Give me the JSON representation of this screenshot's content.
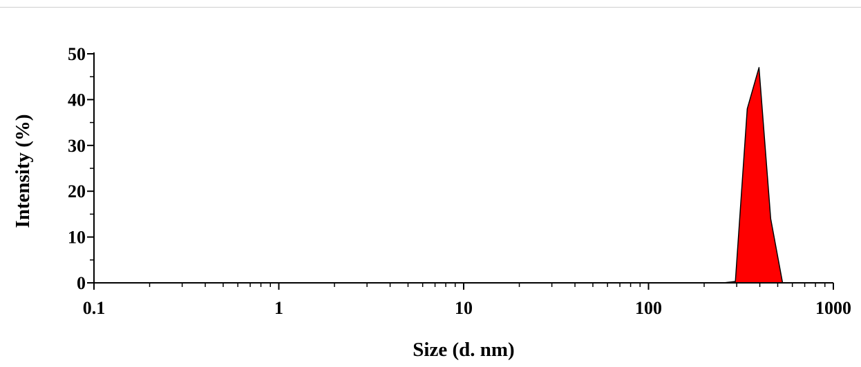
{
  "chart_data": {
    "type": "area",
    "title": "",
    "xlabel": "Size (d. nm)",
    "ylabel": "Intensity (%)",
    "x_scale": "log",
    "xlim": [
      0.1,
      1000
    ],
    "ylim": [
      0,
      50
    ],
    "x_ticks": [
      "0.1",
      "1",
      "10",
      "100",
      "1000"
    ],
    "y_ticks": [
      "0",
      "10",
      "20",
      "30",
      "40",
      "50"
    ],
    "grid": false,
    "legend": "none",
    "series": [
      {
        "color": "#ff0000",
        "outline_color": "#000000",
        "points": [
          {
            "x": 0.1,
            "y": 0
          },
          {
            "x": 255,
            "y": 0
          },
          {
            "x": 295,
            "y": 0.3
          },
          {
            "x": 342,
            "y": 38
          },
          {
            "x": 396,
            "y": 47
          },
          {
            "x": 458,
            "y": 14
          },
          {
            "x": 531,
            "y": 0
          },
          {
            "x": 1000,
            "y": 0
          }
        ]
      }
    ]
  }
}
